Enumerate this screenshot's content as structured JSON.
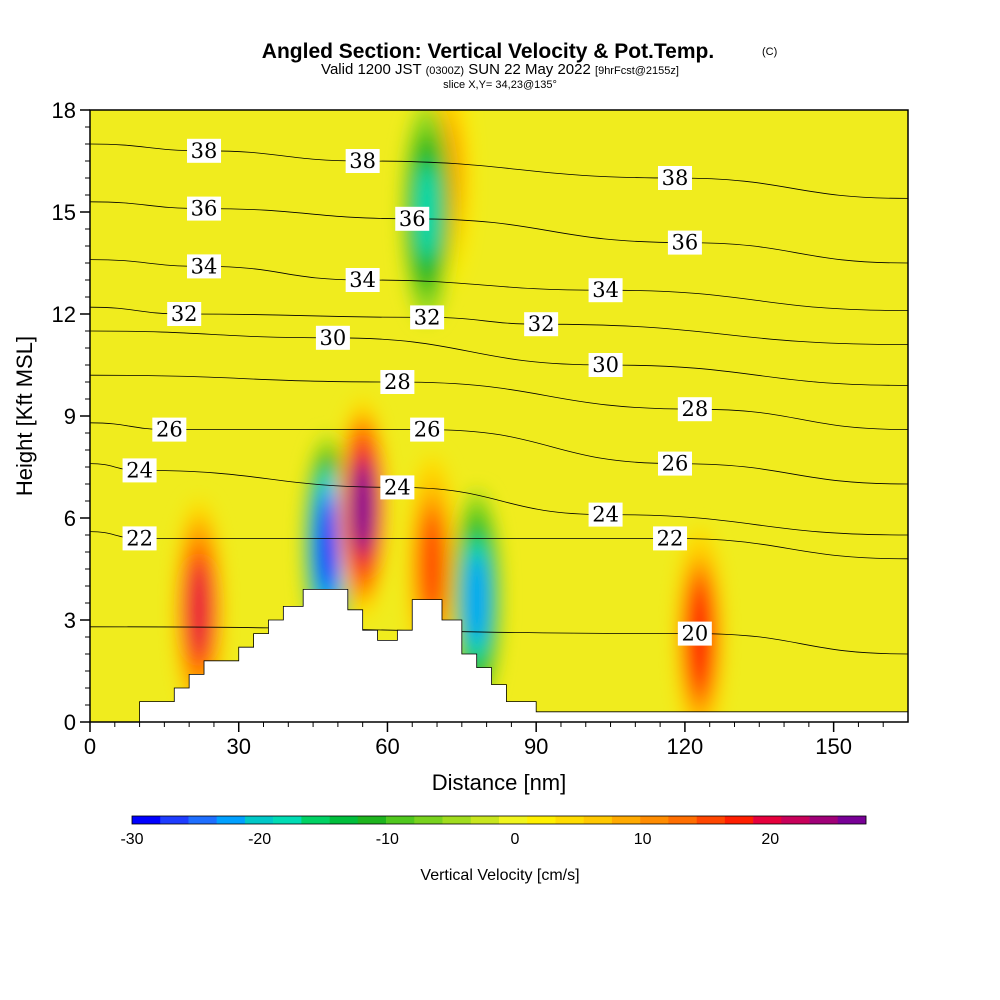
{
  "title": "Angled Section: Vertical Velocity & Pot.Temp.",
  "title_units": "(C)",
  "subtitle_main_a": "Valid 1200 JST",
  "subtitle_small_a": "(0300Z)",
  "subtitle_main_b": "SUN 22 May 2022",
  "subtitle_small_b": "[9hrFcst@2155z]",
  "slice_note": "slice X,Y= 34,23@135°",
  "chart_data": {
    "type": "heatmap",
    "title": "Angled Section: Vertical Velocity & Pot.Temp.",
    "xlabel": "Distance [nm]",
    "ylabel": "Height [Kft MSL]",
    "xlim": [
      0,
      165
    ],
    "ylim": [
      0,
      18
    ],
    "x_ticks": [
      0,
      30,
      60,
      90,
      120,
      150
    ],
    "y_ticks": [
      0,
      3,
      6,
      9,
      12,
      15,
      18
    ],
    "colorbar": {
      "label": "Vertical Velocity [cm/s]",
      "range": [
        -30,
        27.5
      ],
      "ticks": [
        -30,
        -20,
        -10,
        0,
        10,
        20
      ],
      "colors": [
        "#0000ff",
        "#1e3cff",
        "#1e6eff",
        "#00a0ff",
        "#00c8c8",
        "#00dcb4",
        "#00d264",
        "#00be3c",
        "#1eb41e",
        "#50c81e",
        "#78d21e",
        "#a0dc1e",
        "#c8e61e",
        "#f0f51e",
        "#fff000",
        "#ffdc00",
        "#ffc800",
        "#ffaa00",
        "#ff8c00",
        "#ff6e00",
        "#ff4600",
        "#ff1e00",
        "#e6003c",
        "#c8005a",
        "#a00078",
        "#780096"
      ]
    },
    "vertical_velocity_features": [
      {
        "x": 22,
        "y": 3.3,
        "w_cms": 20
      },
      {
        "x": 48,
        "y": 5.2,
        "w_cms": -28
      },
      {
        "x": 55,
        "y": 6.3,
        "w_cms": 26
      },
      {
        "x": 69,
        "y": 4.6,
        "w_cms": 16
      },
      {
        "x": 78,
        "y": 3.6,
        "w_cms": -22
      },
      {
        "x": 123,
        "y": 2.5,
        "w_cms": 18
      },
      {
        "x": 72,
        "y": 16.0,
        "w_cms": 12
      },
      {
        "x": 68,
        "y": 15.0,
        "w_cms": -18
      }
    ],
    "potential_temperature_labels": [
      {
        "text": "38",
        "x": 23,
        "y": 16.8
      },
      {
        "text": "38",
        "x": 55,
        "y": 16.5
      },
      {
        "text": "38",
        "x": 118,
        "y": 16.0
      },
      {
        "text": "36",
        "x": 23,
        "y": 15.1
      },
      {
        "text": "36",
        "x": 65,
        "y": 14.8
      },
      {
        "text": "36",
        "x": 120,
        "y": 14.1
      },
      {
        "text": "34",
        "x": 23,
        "y": 13.4
      },
      {
        "text": "34",
        "x": 55,
        "y": 13.0
      },
      {
        "text": "34",
        "x": 104,
        "y": 12.7
      },
      {
        "text": "32",
        "x": 19,
        "y": 12.0
      },
      {
        "text": "32",
        "x": 68,
        "y": 11.9
      },
      {
        "text": "32",
        "x": 91,
        "y": 11.7
      },
      {
        "text": "30",
        "x": 49,
        "y": 11.3
      },
      {
        "text": "30",
        "x": 104,
        "y": 10.5
      },
      {
        "text": "28",
        "x": 62,
        "y": 10.0
      },
      {
        "text": "28",
        "x": 122,
        "y": 9.2
      },
      {
        "text": "26",
        "x": 16,
        "y": 8.6
      },
      {
        "text": "26",
        "x": 68,
        "y": 8.6
      },
      {
        "text": "26",
        "x": 118,
        "y": 7.6
      },
      {
        "text": "24",
        "x": 10,
        "y": 7.4
      },
      {
        "text": "24",
        "x": 62,
        "y": 6.9
      },
      {
        "text": "24",
        "x": 104,
        "y": 6.1
      },
      {
        "text": "22",
        "x": 10,
        "y": 5.4
      },
      {
        "text": "22",
        "x": 117,
        "y": 5.4
      },
      {
        "text": "20",
        "x": 122,
        "y": 2.6
      }
    ],
    "terrain_profile": [
      [
        0,
        0
      ],
      [
        10,
        0
      ],
      [
        10,
        0.6
      ],
      [
        17,
        0.6
      ],
      [
        17,
        1.0
      ],
      [
        20,
        1.0
      ],
      [
        20,
        1.4
      ],
      [
        23,
        1.4
      ],
      [
        23,
        1.8
      ],
      [
        30,
        1.8
      ],
      [
        30,
        2.2
      ],
      [
        33,
        2.2
      ],
      [
        33,
        2.6
      ],
      [
        36,
        2.6
      ],
      [
        36,
        3.0
      ],
      [
        39,
        3.0
      ],
      [
        39,
        3.4
      ],
      [
        43,
        3.4
      ],
      [
        43,
        3.9
      ],
      [
        52,
        3.9
      ],
      [
        52,
        3.3
      ],
      [
        55,
        3.3
      ],
      [
        55,
        2.7
      ],
      [
        58,
        2.7
      ],
      [
        58,
        2.4
      ],
      [
        62,
        2.4
      ],
      [
        62,
        2.7
      ],
      [
        65,
        2.7
      ],
      [
        65,
        3.6
      ],
      [
        71,
        3.6
      ],
      [
        71,
        3.0
      ],
      [
        75,
        3.0
      ],
      [
        75,
        2.0
      ],
      [
        78,
        2.0
      ],
      [
        78,
        1.6
      ],
      [
        81,
        1.6
      ],
      [
        81,
        1.1
      ],
      [
        84,
        1.1
      ],
      [
        84,
        0.6
      ],
      [
        90,
        0.6
      ],
      [
        90,
        0.3
      ],
      [
        165,
        0.3
      ],
      [
        165,
        0
      ]
    ]
  }
}
